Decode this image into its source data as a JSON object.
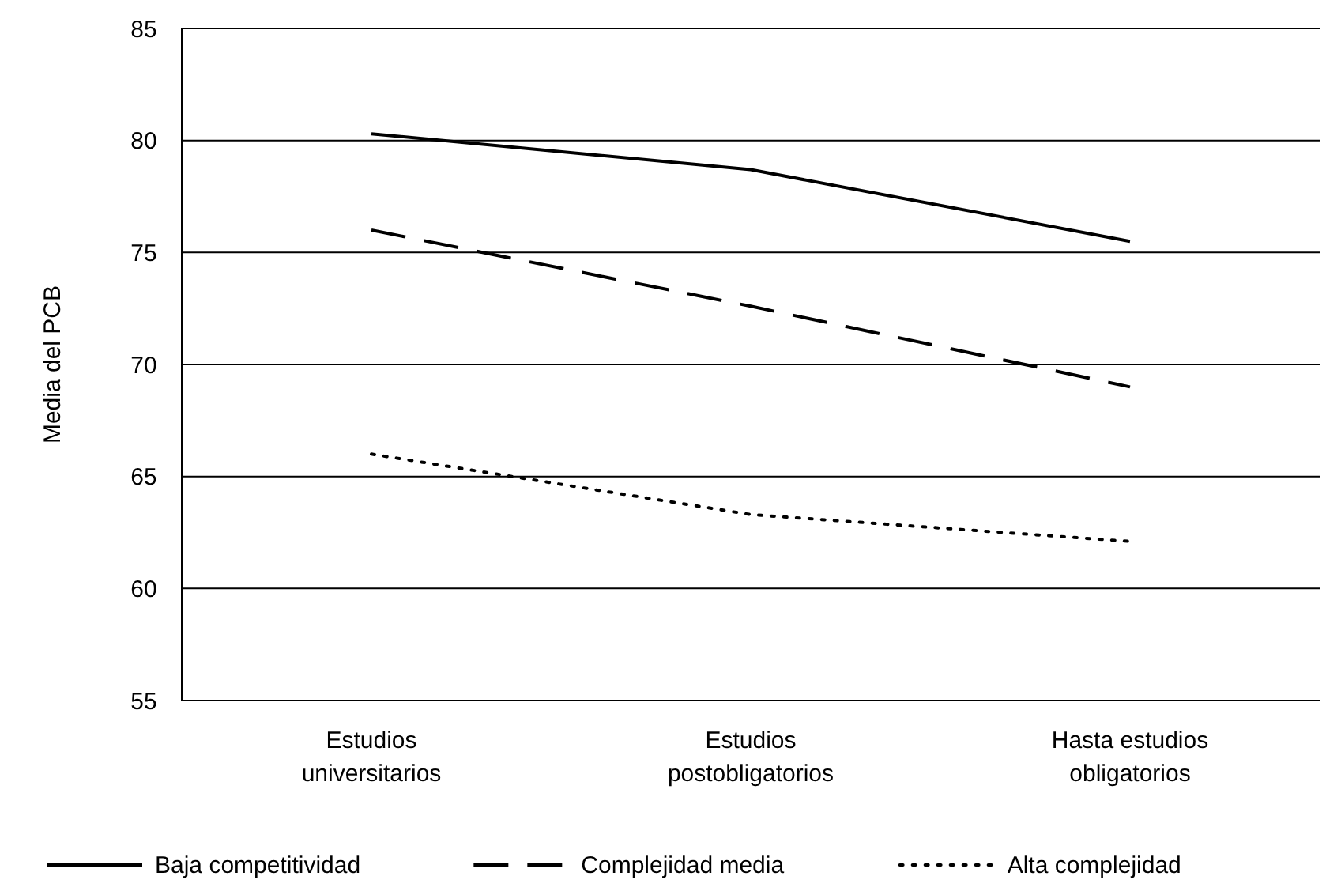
{
  "chart_data": {
    "type": "line",
    "ylabel": "Media del PCB",
    "categories": [
      "Estudios universitarios",
      "Estudios postobligatorios",
      "Hasta estudios obligatorios"
    ],
    "series": [
      {
        "name": "Baja competitividad",
        "color": "#000000",
        "line_style": "solid",
        "values": [
          80.3,
          78.7,
          75.5
        ]
      },
      {
        "name": "Complejidad media",
        "color": "#000000",
        "line_style": "dashed",
        "values": [
          76.0,
          72.6,
          69.0
        ]
      },
      {
        "name": "Alta complejidad",
        "color": "#000000",
        "line_style": "dotted",
        "values": [
          66.0,
          63.3,
          62.1
        ]
      }
    ],
    "ylim": [
      55,
      85
    ],
    "yticks": [
      55,
      60,
      65,
      70,
      75,
      80,
      85
    ],
    "grid": "y",
    "legend": "bottom"
  }
}
